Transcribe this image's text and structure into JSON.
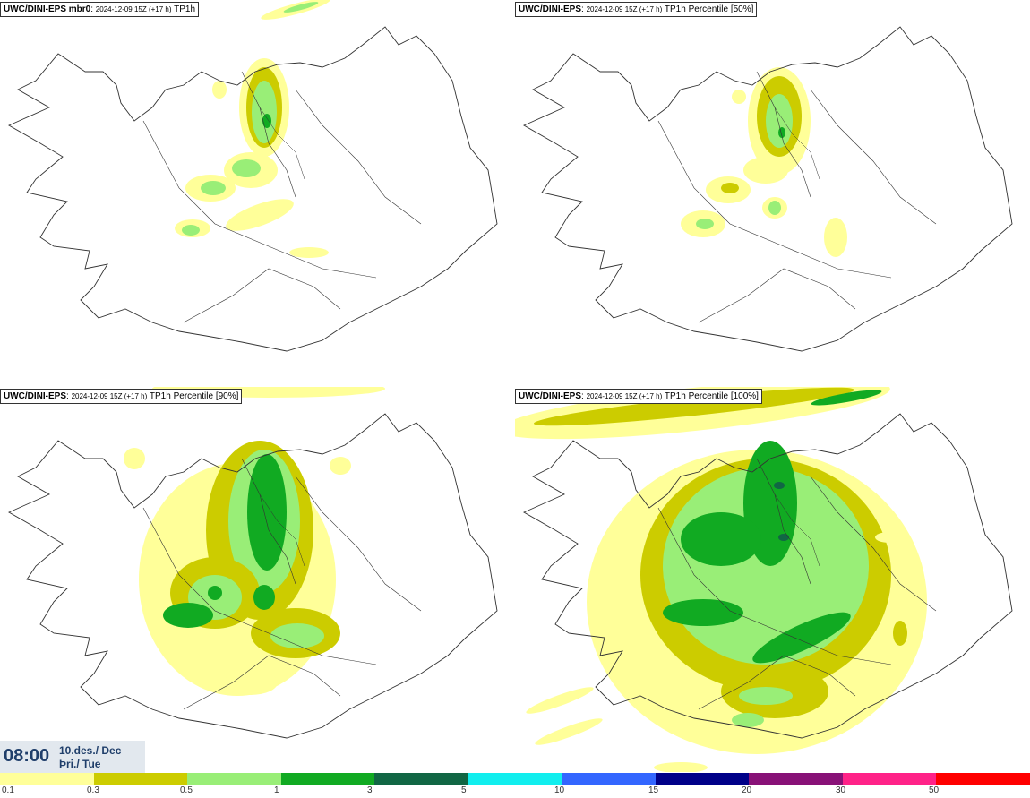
{
  "panels": [
    {
      "model": "UWC/DINI-EPS mbr0",
      "run": "2024-12-09 15Z (+17 h)",
      "field": "TP1h"
    },
    {
      "model": "UWC/DINI-EPS",
      "run": "2024-12-09 15Z (+17 h)",
      "field": "TP1h Percentile [50%]"
    },
    {
      "model": "UWC/DINI-EPS",
      "run": "2024-12-09 15Z (+17 h)",
      "field": "TP1h Percentile [90%]"
    },
    {
      "model": "UWC/DINI-EPS",
      "run": "2024-12-09 15Z (+17 h)",
      "field": "TP1h Percentile [100%]"
    }
  ],
  "valid_time": {
    "clock": "08:00",
    "date": "10.des./ Dec",
    "weekday": "Þri./ Tue"
  },
  "legend": {
    "ticks": [
      "0.1",
      "0.3",
      "0.5",
      "1",
      "3",
      "5",
      "10",
      "15",
      "20",
      "30",
      "50"
    ],
    "colors": [
      "#ffff99",
      "#cccc00",
      "#99ee77",
      "#11aa22",
      "#116644",
      "#11eeee",
      "#3366ff",
      "#000088",
      "#881177",
      "#ff2288",
      "#ff0000"
    ]
  }
}
